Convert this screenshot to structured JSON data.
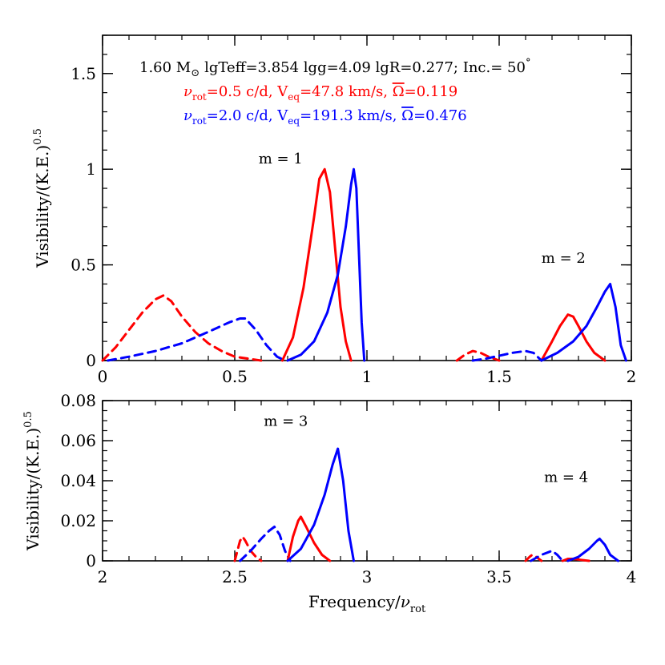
{
  "chart_data": [
    {
      "type": "line",
      "xlim": [
        0,
        2
      ],
      "ylim": [
        0,
        1.7
      ],
      "xticks": [
        0,
        0.5,
        1,
        1.5,
        2
      ],
      "xtick_labels": [
        "0",
        "0.5",
        "1",
        "1.5",
        "2"
      ],
      "yticks": [
        0,
        0.5,
        1,
        1.5
      ],
      "ytick_labels": [
        "0",
        "0.5",
        "1",
        "1.5"
      ],
      "ylabel": "Visibility/(K.E.)",
      "ylabel_sup": "0.5",
      "grid": false,
      "header": {
        "line1": {
          "mass": "1.60 M",
          "mass_sub": "⊙",
          "rest": "lgTeff=3.854  lgg=4.09  lgR=0.277;  Inc.= 50",
          "deg": "°"
        },
        "line2": {
          "nu": "ν",
          "nu_sub": "rot",
          "mid": "=0.5  c/d,  V",
          "v_sub": "eq",
          "rest": "=47.8  km/s,  ",
          "omega": "Ω",
          "omega_val": "=0.119",
          "color": "#ff0000"
        },
        "line3": {
          "nu": "ν",
          "nu_sub": "rot",
          "mid": "=2.0  c/d,  V",
          "v_sub": "eq",
          "rest": "=191.3  km/s,  ",
          "omega": "Ω",
          "omega_val": "=0.476",
          "color": "#0000ff"
        }
      },
      "annotations": [
        {
          "text": "m  =  1",
          "x": 0.59,
          "y": 1.03
        },
        {
          "text": "m  =  2",
          "x": 1.66,
          "y": 0.51
        }
      ],
      "series": [
        {
          "color": "#ff0000",
          "dash": true,
          "x": [
            0.0,
            0.05,
            0.1,
            0.15,
            0.2,
            0.23,
            0.26,
            0.3,
            0.35,
            0.4,
            0.45,
            0.5,
            0.55,
            0.6
          ],
          "y": [
            0.0,
            0.07,
            0.16,
            0.25,
            0.32,
            0.34,
            0.31,
            0.23,
            0.15,
            0.09,
            0.05,
            0.02,
            0.01,
            0.0
          ]
        },
        {
          "color": "#ff0000",
          "dash": false,
          "x": [
            0.68,
            0.72,
            0.76,
            0.8,
            0.82,
            0.84,
            0.86,
            0.88,
            0.9,
            0.92,
            0.94
          ],
          "y": [
            0.0,
            0.12,
            0.38,
            0.75,
            0.95,
            1.0,
            0.88,
            0.58,
            0.28,
            0.1,
            0.0
          ]
        },
        {
          "color": "#0000ff",
          "dash": true,
          "x": [
            0.02,
            0.1,
            0.2,
            0.3,
            0.4,
            0.48,
            0.52,
            0.54,
            0.58,
            0.62,
            0.66,
            0.69
          ],
          "y": [
            0.0,
            0.02,
            0.05,
            0.09,
            0.15,
            0.2,
            0.22,
            0.22,
            0.16,
            0.08,
            0.02,
            0.0
          ]
        },
        {
          "color": "#0000ff",
          "dash": false,
          "x": [
            0.7,
            0.75,
            0.8,
            0.85,
            0.89,
            0.92,
            0.94,
            0.95,
            0.96,
            0.97,
            0.98,
            0.99
          ],
          "y": [
            0.0,
            0.03,
            0.1,
            0.25,
            0.45,
            0.7,
            0.92,
            1.0,
            0.9,
            0.55,
            0.2,
            0.0
          ]
        },
        {
          "color": "#ff0000",
          "dash": true,
          "x": [
            1.34,
            1.37,
            1.4,
            1.43,
            1.46,
            1.5
          ],
          "y": [
            0.0,
            0.03,
            0.05,
            0.04,
            0.02,
            0.0
          ]
        },
        {
          "color": "#ff0000",
          "dash": false,
          "x": [
            1.66,
            1.7,
            1.73,
            1.76,
            1.78,
            1.8,
            1.83,
            1.86,
            1.9
          ],
          "y": [
            0.0,
            0.1,
            0.18,
            0.24,
            0.23,
            0.18,
            0.1,
            0.04,
            0.0
          ]
        },
        {
          "color": "#0000ff",
          "dash": true,
          "x": [
            1.4,
            1.45,
            1.5,
            1.55,
            1.6,
            1.63,
            1.66
          ],
          "y": [
            0.0,
            0.01,
            0.025,
            0.04,
            0.05,
            0.04,
            0.0
          ]
        },
        {
          "color": "#0000ff",
          "dash": false,
          "x": [
            1.66,
            1.72,
            1.78,
            1.83,
            1.87,
            1.9,
            1.92,
            1.94,
            1.96,
            1.98
          ],
          "y": [
            0.0,
            0.04,
            0.1,
            0.18,
            0.28,
            0.36,
            0.4,
            0.28,
            0.08,
            0.0
          ]
        }
      ]
    },
    {
      "type": "line",
      "xlim": [
        2,
        4
      ],
      "ylim": [
        0,
        0.08
      ],
      "xticks": [
        2,
        2.5,
        3,
        3.5,
        4
      ],
      "xtick_labels": [
        "2",
        "2.5",
        "3",
        "3.5",
        "4"
      ],
      "yticks": [
        0,
        0.02,
        0.04,
        0.06,
        0.08
      ],
      "ytick_labels": [
        "0",
        "0.02",
        "0.04",
        "0.06",
        "0.08"
      ],
      "ylabel": "Visibility/(K.E.)",
      "ylabel_sup": "0.5",
      "xlabel": "Frequency/",
      "xlabel_nu": "ν",
      "xlabel_sub": "rot",
      "grid": false,
      "annotations": [
        {
          "text": "m  =  3",
          "x": 2.61,
          "y": 0.0675
        },
        {
          "text": "m  =  4",
          "x": 3.67,
          "y": 0.0395
        }
      ],
      "series": [
        {
          "color": "#ff0000",
          "dash": true,
          "x": [
            2.5,
            2.51,
            2.52,
            2.53,
            2.54,
            2.56,
            2.58,
            2.6
          ],
          "y": [
            0.0,
            0.005,
            0.01,
            0.012,
            0.01,
            0.005,
            0.002,
            0.0
          ]
        },
        {
          "color": "#0000ff",
          "dash": true,
          "x": [
            2.52,
            2.56,
            2.6,
            2.63,
            2.65,
            2.67,
            2.69,
            2.71
          ],
          "y": [
            0.0,
            0.005,
            0.011,
            0.015,
            0.017,
            0.013,
            0.005,
            0.0
          ]
        },
        {
          "color": "#ff0000",
          "dash": false,
          "x": [
            2.7,
            2.72,
            2.74,
            2.75,
            2.77,
            2.8,
            2.83,
            2.86
          ],
          "y": [
            0.0,
            0.012,
            0.02,
            0.022,
            0.017,
            0.009,
            0.003,
            0.0
          ]
        },
        {
          "color": "#0000ff",
          "dash": false,
          "x": [
            2.7,
            2.75,
            2.8,
            2.84,
            2.87,
            2.89,
            2.91,
            2.93,
            2.95
          ],
          "y": [
            0.0,
            0.006,
            0.018,
            0.033,
            0.048,
            0.056,
            0.04,
            0.015,
            0.0
          ]
        },
        {
          "color": "#ff0000",
          "dash": true,
          "x": [
            3.6,
            3.615,
            3.625,
            3.64,
            3.66
          ],
          "y": [
            0.0,
            0.002,
            0.003,
            0.002,
            0.0
          ]
        },
        {
          "color": "#0000ff",
          "dash": true,
          "x": [
            3.62,
            3.66,
            3.7,
            3.72,
            3.74
          ],
          "y": [
            0.0,
            0.003,
            0.005,
            0.003,
            0.0
          ]
        },
        {
          "color": "#ff0000",
          "dash": false,
          "x": [
            3.74,
            3.76,
            3.78,
            3.81,
            3.84
          ],
          "y": [
            0.0,
            0.001,
            0.001,
            0.0005,
            0.0
          ]
        },
        {
          "color": "#0000ff",
          "dash": false,
          "x": [
            3.76,
            3.8,
            3.84,
            3.87,
            3.88,
            3.9,
            3.92,
            3.95
          ],
          "y": [
            0.0,
            0.002,
            0.006,
            0.01,
            0.011,
            0.008,
            0.003,
            0.0
          ]
        }
      ]
    }
  ]
}
